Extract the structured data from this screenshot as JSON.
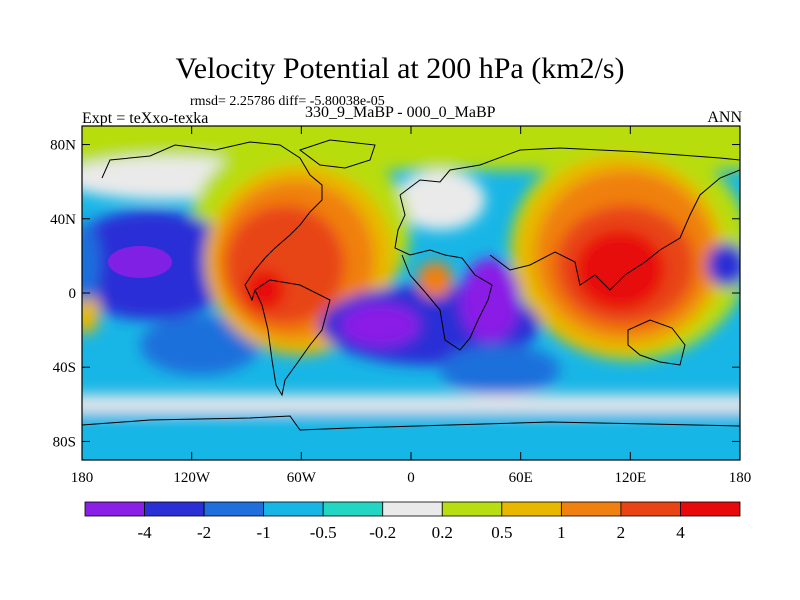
{
  "title": "Velocity Potential at 200 hPa (km2/s)",
  "stats_line": "rmsd= 2.25786 diff= -5.80038e-05",
  "experiment_label": "Expt = teXxo-texka",
  "comparison_label": "330_9_MaBP - 000_0_MaBP",
  "season_label": "ANN",
  "map": {
    "lon_range": [
      -180,
      180
    ],
    "lat_range": [
      -90,
      90
    ],
    "y_ticks": [
      {
        "label": "80N",
        "lat": 80
      },
      {
        "label": "40N",
        "lat": 40
      },
      {
        "label": "0",
        "lat": 0
      },
      {
        "label": "40S",
        "lat": -40
      },
      {
        "label": "80S",
        "lat": -80
      }
    ],
    "x_ticks": [
      {
        "label": "180",
        "lon": -180
      },
      {
        "label": "120W",
        "lon": -120
      },
      {
        "label": "60W",
        "lon": -60
      },
      {
        "label": "0",
        "lon": 0
      },
      {
        "label": "60E",
        "lon": 60
      },
      {
        "label": "120E",
        "lon": 120
      },
      {
        "label": "180",
        "lon": 180
      }
    ]
  },
  "colorbar": {
    "colors": [
      "#8a1fe6",
      "#2b2fd6",
      "#1f6fdc",
      "#18b6e6",
      "#22d6c4",
      "#eaeaea",
      "#b8dd10",
      "#e8b800",
      "#f08010",
      "#e84414",
      "#e80a0a"
    ],
    "labels": [
      "-4",
      "-2",
      "-1",
      "-0.5",
      "-0.2",
      "0.2",
      "0.5",
      "1",
      "2",
      "4"
    ]
  }
}
